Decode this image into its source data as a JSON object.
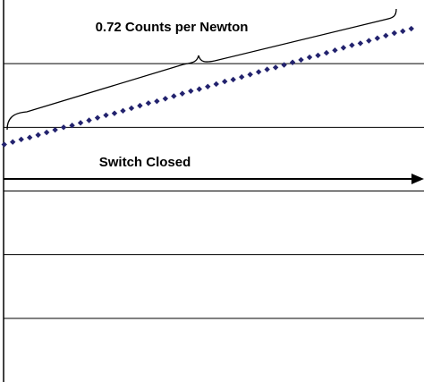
{
  "chart_data": {
    "type": "scatter",
    "annotations": [
      "0.72 Counts per Newton",
      "Switch Closed"
    ],
    "x": [
      1,
      3,
      5,
      7,
      9,
      11,
      13,
      15,
      17,
      19,
      21,
      23,
      25,
      27,
      29,
      31,
      33,
      35,
      37,
      39,
      41,
      43,
      45,
      47,
      49,
      51,
      53,
      55,
      57,
      59,
      61,
      63,
      65,
      67,
      69,
      71,
      73,
      75,
      77,
      79,
      81,
      83,
      85,
      87,
      89,
      91,
      93,
      95,
      97
    ],
    "values": [
      3.73,
      3.77,
      3.81,
      3.84,
      3.88,
      3.92,
      3.96,
      4.0,
      4.03,
      4.07,
      4.11,
      4.15,
      4.19,
      4.22,
      4.26,
      4.3,
      4.34,
      4.38,
      4.41,
      4.45,
      4.49,
      4.53,
      4.57,
      4.6,
      4.64,
      4.68,
      4.72,
      4.75,
      4.79,
      4.83,
      4.87,
      4.91,
      4.94,
      4.98,
      5.02,
      5.06,
      5.1,
      5.13,
      5.17,
      5.21,
      5.25,
      5.29,
      5.32,
      5.36,
      5.4,
      5.44,
      5.48,
      5.51,
      5.55
    ],
    "color": "#22226e",
    "xlim": [
      0,
      100
    ],
    "ylim": [
      0,
      6
    ],
    "yticks": [
      1,
      2,
      3,
      4,
      5
    ],
    "grid": true
  }
}
